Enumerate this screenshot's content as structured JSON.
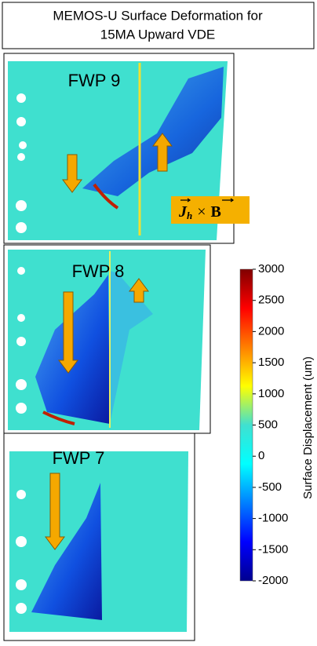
{
  "title": {
    "line1": "MEMOS-U Surface Deformation for",
    "line2": "15MA Upward VDE"
  },
  "panels": [
    {
      "label": "FWP 9"
    },
    {
      "label": "FWP 8"
    },
    {
      "label": "FWP 7"
    }
  ],
  "annotation": {
    "j": "J",
    "sub": "h",
    "times": "×",
    "b": "B"
  },
  "colorbar": {
    "label": "Surface Displacement (um)",
    "clim": [
      -2000,
      3000
    ],
    "ticks": [
      3000,
      2500,
      2000,
      1500,
      1000,
      500,
      0,
      -500,
      -1000,
      -1500,
      -2000
    ]
  }
}
